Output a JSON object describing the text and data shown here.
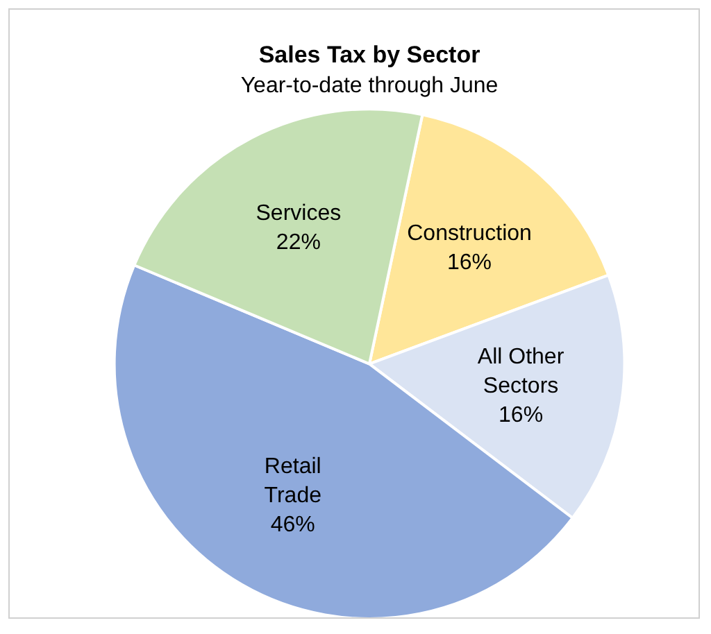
{
  "chart_data": {
    "type": "pie",
    "title": "Sales Tax by Sector",
    "subtitle": "Year-to-date through June",
    "categories": [
      "Construction",
      "All Other Sectors",
      "Retail Trade",
      "Services"
    ],
    "values": [
      16,
      16,
      46,
      22
    ],
    "colors": [
      "#ffe699",
      "#dae3f3",
      "#8faadc",
      "#c5e0b4"
    ],
    "value_labels": [
      "16%",
      "16%",
      "46%",
      "22%"
    ],
    "legend": false
  }
}
